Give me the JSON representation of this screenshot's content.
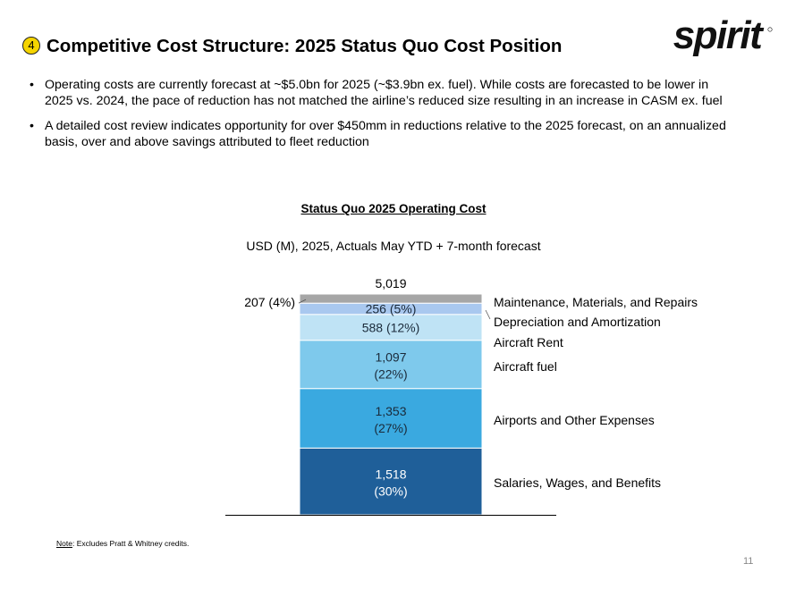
{
  "badge": "4",
  "title": "Competitive Cost Structure: 2025 Status Quo Cost Position",
  "logo_text": "spirit",
  "bullets": [
    "Operating costs are currently forecast at ~$5.0bn for 2025 (~$3.9bn ex. fuel). While costs are forecasted to be lower in 2025 vs. 2024, the pace of reduction has not matched the airline’s reduced size resulting in an increase in CASM ex. fuel",
    "A detailed cost review indicates opportunity for over $450mm in reductions relative to the 2025 forecast, on an annualized basis, over and above savings attributed to fleet reduction"
  ],
  "chart_data": {
    "type": "bar",
    "stacked": true,
    "title": "Status Quo 2025 Operating Cost",
    "subtitle": "USD (M), 2025, Actuals May YTD + 7-month forecast",
    "total_label": "5,019",
    "total": 5019,
    "segments": [
      {
        "name": "Salaries, Wages, and Benefits",
        "value": 1518,
        "value_label": "1,518",
        "pct_label": "(30%)",
        "color": "#1f5f99",
        "text_color": "#ffffff"
      },
      {
        "name": "Airports and Other Expenses",
        "value": 1353,
        "value_label": "1,353",
        "pct_label": "(27%)",
        "color": "#3aa9e0",
        "text_color": "#1a2a3a"
      },
      {
        "name": "Aircraft fuel",
        "value": 1097,
        "value_label": "1,097",
        "pct_label": "(22%)",
        "color": "#7ec9ec",
        "text_color": "#1a2a3a"
      },
      {
        "name": "Aircraft Rent",
        "value": 588,
        "value_label": "588 (12%)",
        "pct_label": "",
        "color": "#bfe3f5",
        "text_color": "#1a2a3a"
      },
      {
        "name": "Depreciation and Amortization",
        "value": 256,
        "value_label": "256 (5%)",
        "pct_label": "",
        "color": "#a9c8ef",
        "text_color": "#1a2a3a"
      },
      {
        "name": "Maintenance, Materials, and Repairs",
        "value": 207,
        "value_label": "207 (4%)",
        "pct_label": "",
        "color": "#a6a6a6",
        "text_color": "#000000"
      }
    ]
  },
  "note_label": "Note",
  "note_text": ": Excludes Pratt & Whitney credits.",
  "page_number": "11"
}
